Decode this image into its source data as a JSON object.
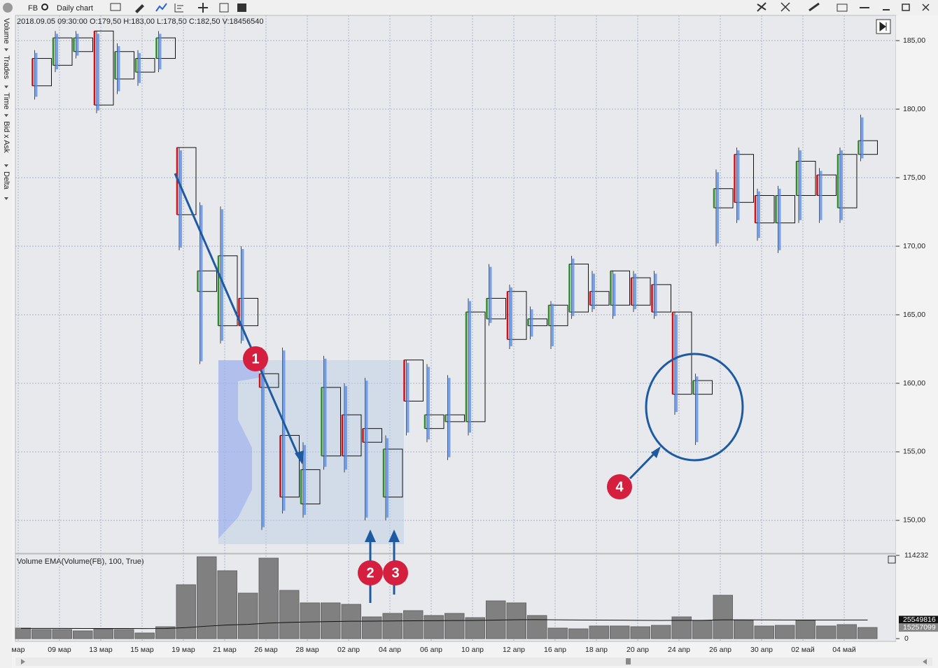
{
  "toolbar": {
    "symbol": "FB",
    "chart_name": "Daily chart"
  },
  "side_tabs": [
    "Volume",
    "Trades",
    "Time",
    "Bid x Ask",
    "Delta"
  ],
  "info_line": "2018.09.05 09:30:00 O:179,50 H:183,00 L:178,50 C:182,50 V:18456540",
  "annotations": [
    "1",
    "2",
    "3",
    "4"
  ],
  "chart_data": [
    {
      "type": "candlestick",
      "categories": [
        "мар",
        null,
        "09 мар",
        null,
        "13 мар",
        null,
        "15 мар",
        null,
        "19 мар",
        null,
        "21 мар",
        null,
        "26 мар",
        null,
        "28 мар",
        null,
        "02 апр",
        null,
        "04 апр",
        null,
        "06 апр",
        null,
        "10 апр",
        null,
        "12 апр",
        null,
        "16 апр",
        null,
        "18 апр",
        null,
        "20 апр",
        null,
        "24 апр",
        null,
        "26 апр",
        null,
        "30 апр",
        null,
        "02 май",
        null,
        "04 май",
        null
      ],
      "open": [
        null,
        183.7,
        183.2,
        184.2,
        185.7,
        182.2,
        182.7,
        183.7,
        177.2,
        166.7,
        164.2,
        166.2,
        160.7,
        156.2,
        151.2,
        154.7,
        157.7,
        156.7,
        151.7,
        161.7,
        156.7,
        157.2,
        157.2,
        164.7,
        166.7,
        164.2,
        164.2,
        165.2,
        166.7,
        165.7,
        167.7,
        167.2,
        165.2,
        159.2,
        172.8,
        176.7,
        173.7,
        171.7,
        173.7,
        175.2,
        172.8,
        176.7
      ],
      "high": [
        null,
        184.3,
        185.7,
        185.7,
        185.7,
        184.8,
        184.3,
        185.7,
        177.2,
        173.2,
        172.9,
        170.0,
        162.6,
        162.6,
        155.7,
        162.0,
        160.0,
        160.4,
        156.2,
        161.7,
        161.4,
        160.6,
        166.2,
        168.7,
        167.2,
        165.6,
        166.0,
        169.3,
        168.2,
        168.2,
        168.2,
        168.2,
        165.2,
        160.7,
        175.6,
        177.2,
        174.2,
        174.4,
        177.2,
        175.7,
        177.2,
        179.6
      ],
      "low": [
        null,
        180.7,
        182.7,
        183.7,
        179.7,
        181.1,
        181.7,
        182.7,
        169.7,
        161.4,
        162.9,
        162.9,
        149.3,
        150.5,
        150.2,
        153.7,
        153.5,
        150.0,
        150.0,
        156.2,
        155.7,
        154.4,
        156.2,
        164.2,
        162.5,
        163.2,
        162.5,
        164.7,
        165.2,
        164.7,
        165.2,
        164.7,
        157.7,
        155.5,
        170.0,
        171.7,
        170.4,
        169.5,
        171.7,
        171.7,
        171.7,
        176.2
      ],
      "close": [
        null,
        181.7,
        185.2,
        185.2,
        180.3,
        184.2,
        183.7,
        185.2,
        172.3,
        168.2,
        169.3,
        164.2,
        159.7,
        151.7,
        153.7,
        159.7,
        154.7,
        155.7,
        155.2,
        158.7,
        157.7,
        157.7,
        165.2,
        166.2,
        163.2,
        164.7,
        165.7,
        168.7,
        165.7,
        168.2,
        165.7,
        165.2,
        159.2,
        160.2,
        174.2,
        173.2,
        171.7,
        173.7,
        176.2,
        173.7,
        176.7,
        177.7
      ],
      "up_color": "#2e8b2e",
      "down_color": "#d0101b",
      "ylim": [
        147.65,
        186.84
      ],
      "yticks": [
        {
          "value": 150,
          "label": "150,00"
        },
        {
          "value": 155,
          "label": "155,00"
        },
        {
          "value": 160,
          "label": "160,00"
        },
        {
          "value": 165,
          "label": "165,00"
        },
        {
          "value": 170,
          "label": "170,00"
        },
        {
          "value": 175,
          "label": "175,00"
        },
        {
          "value": 180,
          "label": "180,00"
        },
        {
          "value": 185,
          "label": "185,00"
        }
      ],
      "grid": true
    },
    {
      "type": "bar",
      "title": "Volume EMA(Volume(FB), 100, True)",
      "color": "#808080",
      "values": [
        14400000,
        12500000,
        12500000,
        10600000,
        13400000,
        12500000,
        7700000,
        16300000,
        73900000,
        112300000,
        93100000,
        62400000,
        110400000,
        66200000,
        49000000,
        49000000,
        47000000,
        29800000,
        34600000,
        38400000,
        31700000,
        34600000,
        28800000,
        51800000,
        49000000,
        31700000,
        14400000,
        13400000,
        17300000,
        17300000,
        16300000,
        18200000,
        29800000,
        25000000,
        59500000,
        25000000,
        17300000,
        18200000,
        25000000,
        17300000,
        19200000,
        15257099
      ],
      "ema": [
        14000000,
        14000000,
        14000000,
        13900000,
        13900000,
        13900000,
        13800000,
        13900000,
        15100000,
        17100000,
        18700000,
        19600000,
        21400000,
        22300000,
        22900000,
        23400000,
        23900000,
        24000000,
        24200000,
        24500000,
        24600000,
        24800000,
        24900000,
        25400000,
        25900000,
        26000000,
        25800000,
        25600000,
        25400000,
        25300000,
        25100000,
        25000000,
        25100000,
        25100000,
        25800000,
        25800000,
        25700000,
        25600000,
        25600000,
        25600000,
        25500000,
        25549816
      ],
      "ema_label": "25549816",
      "last_label": "15257099",
      "ylim": [
        0,
        114232000
      ],
      "yticks": [
        0,
        {
          "value": 114232000,
          "label": "114232"
        }
      ]
    }
  ]
}
